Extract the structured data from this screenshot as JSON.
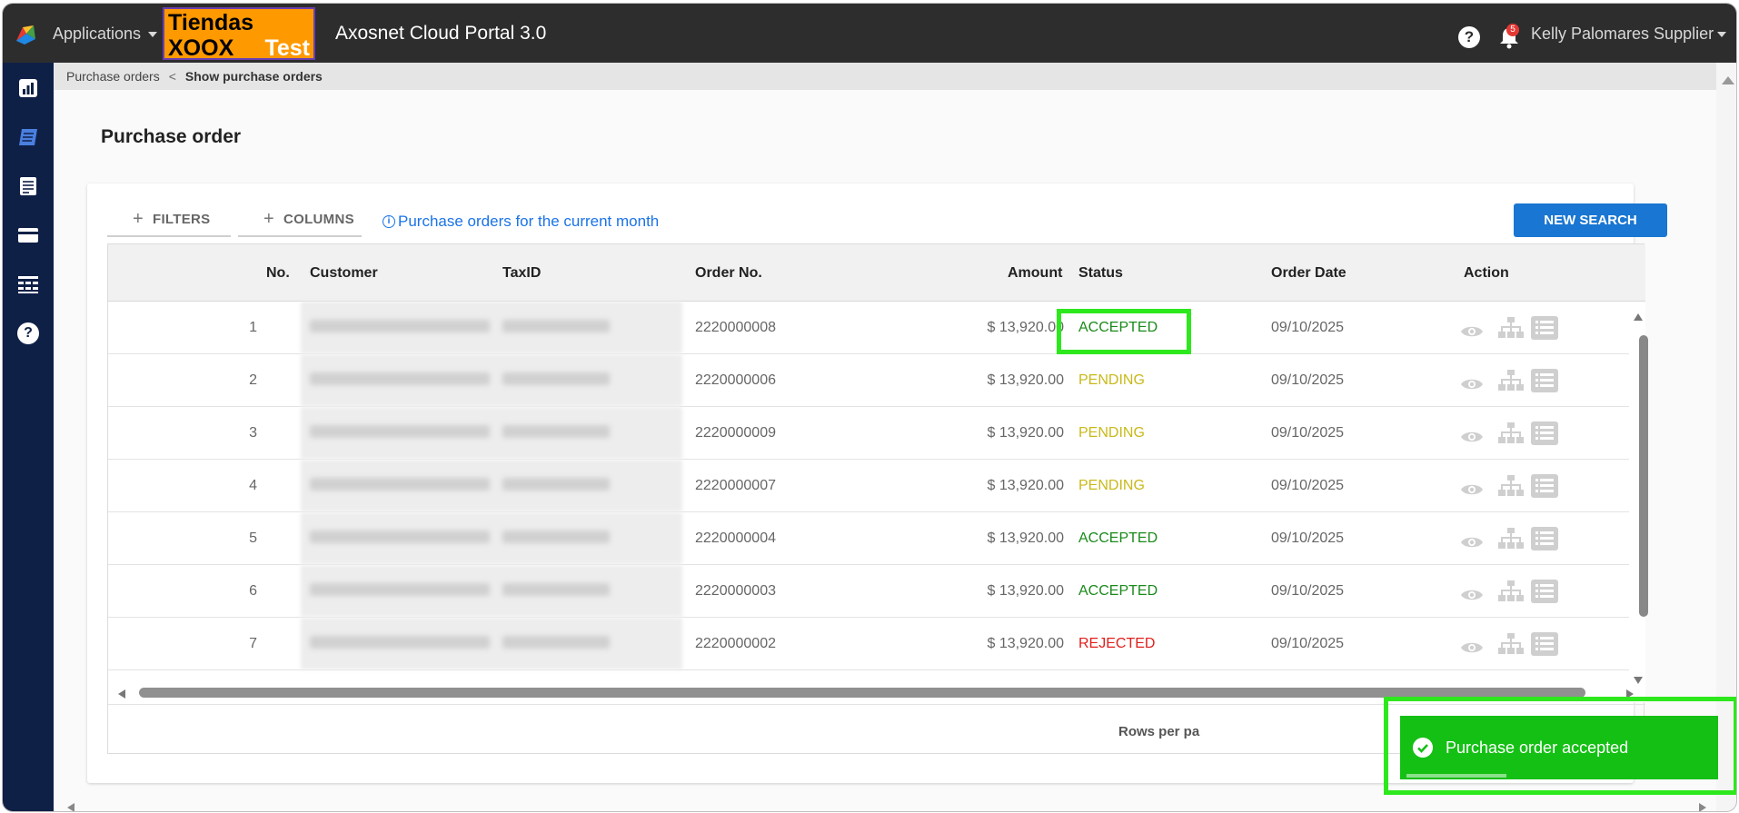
{
  "topbar": {
    "applications_label": "Applications",
    "brand": {
      "line1": "Tiendas",
      "line2": "XOOX",
      "line3": "Test"
    },
    "portal_title": "Axosnet Cloud Portal 3.0",
    "help_glyph": "?",
    "notification_count": "5",
    "user_name": "Kelly Palomares Supplier"
  },
  "sidebar": {
    "icons": [
      "dashboard-icon",
      "purchase-orders-icon",
      "invoices-icon",
      "payments-icon",
      "reports-icon",
      "help-icon"
    ],
    "help_glyph": "?"
  },
  "breadcrumb": {
    "parent": "Purchase orders",
    "separator": "<",
    "current": "Show purchase orders"
  },
  "page": {
    "title": "Purchase order"
  },
  "toolbar": {
    "filters_label": "FILTERS",
    "columns_label": "COLUMNS",
    "info_label": "Purchase orders for the current month",
    "info_glyph": "i",
    "new_search_label": "NEW SEARCH"
  },
  "table": {
    "headers": {
      "no": "No.",
      "customer": "Customer",
      "taxid": "TaxID",
      "order_no": "Order No.",
      "amount": "Amount",
      "status": "Status",
      "order_date": "Order Date",
      "action": "Action"
    },
    "rows": [
      {
        "no": "1",
        "order_no": "2220000008",
        "amount": "$ 13,920.00",
        "status": "ACCEPTED",
        "order_date": "09/10/2025"
      },
      {
        "no": "2",
        "order_no": "2220000006",
        "amount": "$ 13,920.00",
        "status": "PENDING",
        "order_date": "09/10/2025"
      },
      {
        "no": "3",
        "order_no": "2220000009",
        "amount": "$ 13,920.00",
        "status": "PENDING",
        "order_date": "09/10/2025"
      },
      {
        "no": "4",
        "order_no": "2220000007",
        "amount": "$ 13,920.00",
        "status": "PENDING",
        "order_date": "09/10/2025"
      },
      {
        "no": "5",
        "order_no": "2220000004",
        "amount": "$ 13,920.00",
        "status": "ACCEPTED",
        "order_date": "09/10/2025"
      },
      {
        "no": "6",
        "order_no": "2220000003",
        "amount": "$ 13,920.00",
        "status": "ACCEPTED",
        "order_date": "09/10/2025"
      },
      {
        "no": "7",
        "order_no": "2220000002",
        "amount": "$ 13,920.00",
        "status": "REJECTED",
        "order_date": "09/10/2025"
      }
    ],
    "rows_per_page_label": "Rows per pa"
  },
  "toast": {
    "message": "Purchase order accepted"
  },
  "colors": {
    "accepted": "#1b8a1b",
    "pending": "#c9b91a",
    "rejected": "#e0201c",
    "accent": "#1976d2",
    "toast": "#15c015",
    "highlight": "#2ee81e"
  }
}
